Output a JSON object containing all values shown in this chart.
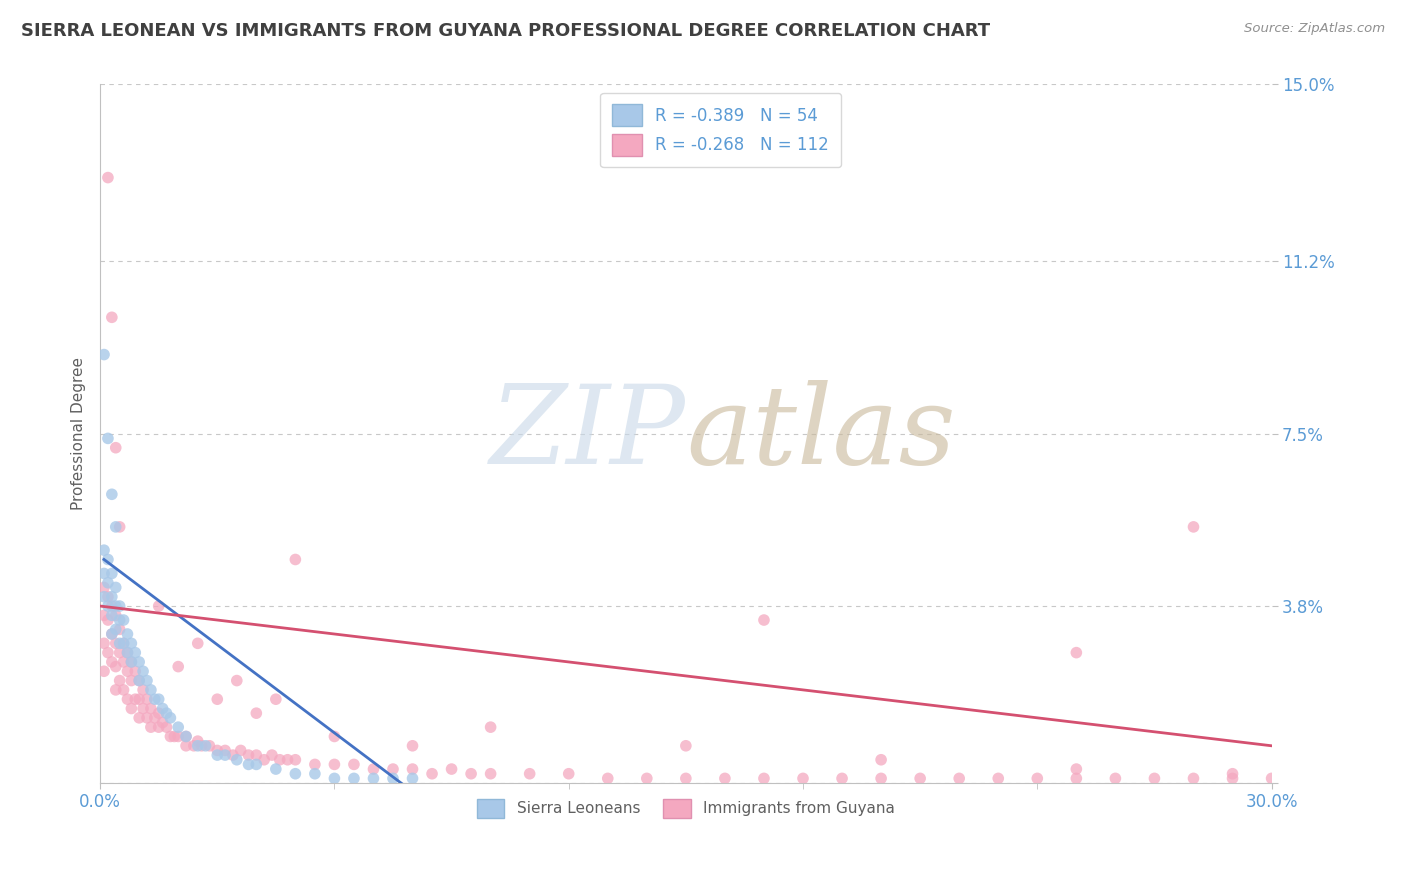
{
  "title": "SIERRA LEONEAN VS IMMIGRANTS FROM GUYANA PROFESSIONAL DEGREE CORRELATION CHART",
  "source": "Source: ZipAtlas.com",
  "ylabel": "Professional Degree",
  "xmin": 0.0,
  "xmax": 0.3,
  "ymin": 0.0,
  "ymax": 0.15,
  "yticks": [
    0.0,
    0.038,
    0.075,
    0.112,
    0.15
  ],
  "ytick_labels": [
    "",
    "3.8%",
    "7.5%",
    "11.2%",
    "15.0%"
  ],
  "xticks": [
    0.0,
    0.3
  ],
  "xtick_labels": [
    "0.0%",
    "30.0%"
  ],
  "blue_scatter_color": "#a8c8e8",
  "pink_scatter_color": "#f4a8c0",
  "blue_line_color": "#4472c4",
  "pink_line_color": "#d45070",
  "grid_color": "#c8c8c8",
  "axis_color": "#c0c0c0",
  "title_color": "#404040",
  "label_color": "#5b9bd5",
  "blue_line_x": [
    0.001,
    0.085
  ],
  "blue_line_y": [
    0.048,
    -0.005
  ],
  "pink_line_x": [
    0.0,
    0.3
  ],
  "pink_line_y": [
    0.038,
    0.008
  ],
  "blue_points_x": [
    0.001,
    0.001,
    0.001,
    0.002,
    0.002,
    0.002,
    0.003,
    0.003,
    0.003,
    0.003,
    0.004,
    0.004,
    0.004,
    0.005,
    0.005,
    0.005,
    0.006,
    0.006,
    0.007,
    0.007,
    0.008,
    0.008,
    0.009,
    0.01,
    0.01,
    0.011,
    0.012,
    0.013,
    0.014,
    0.015,
    0.016,
    0.017,
    0.018,
    0.02,
    0.022,
    0.025,
    0.027,
    0.03,
    0.032,
    0.035,
    0.038,
    0.04,
    0.045,
    0.05,
    0.055,
    0.06,
    0.065,
    0.07,
    0.075,
    0.08,
    0.001,
    0.002,
    0.003,
    0.004
  ],
  "blue_points_y": [
    0.05,
    0.045,
    0.04,
    0.048,
    0.043,
    0.038,
    0.045,
    0.04,
    0.036,
    0.032,
    0.042,
    0.038,
    0.033,
    0.038,
    0.035,
    0.03,
    0.035,
    0.03,
    0.032,
    0.028,
    0.03,
    0.026,
    0.028,
    0.026,
    0.022,
    0.024,
    0.022,
    0.02,
    0.018,
    0.018,
    0.016,
    0.015,
    0.014,
    0.012,
    0.01,
    0.008,
    0.008,
    0.006,
    0.006,
    0.005,
    0.004,
    0.004,
    0.003,
    0.002,
    0.002,
    0.001,
    0.001,
    0.001,
    0.001,
    0.001,
    0.092,
    0.074,
    0.062,
    0.055
  ],
  "pink_points_x": [
    0.001,
    0.001,
    0.001,
    0.001,
    0.002,
    0.002,
    0.002,
    0.003,
    0.003,
    0.003,
    0.004,
    0.004,
    0.004,
    0.004,
    0.005,
    0.005,
    0.005,
    0.006,
    0.006,
    0.006,
    0.007,
    0.007,
    0.007,
    0.008,
    0.008,
    0.008,
    0.009,
    0.009,
    0.01,
    0.01,
    0.01,
    0.011,
    0.011,
    0.012,
    0.012,
    0.013,
    0.013,
    0.014,
    0.015,
    0.015,
    0.016,
    0.017,
    0.018,
    0.019,
    0.02,
    0.022,
    0.022,
    0.024,
    0.025,
    0.026,
    0.028,
    0.03,
    0.032,
    0.034,
    0.036,
    0.038,
    0.04,
    0.042,
    0.044,
    0.046,
    0.048,
    0.05,
    0.055,
    0.06,
    0.065,
    0.07,
    0.075,
    0.08,
    0.085,
    0.09,
    0.095,
    0.1,
    0.11,
    0.12,
    0.13,
    0.14,
    0.15,
    0.16,
    0.17,
    0.18,
    0.19,
    0.2,
    0.21,
    0.22,
    0.23,
    0.24,
    0.25,
    0.26,
    0.27,
    0.28,
    0.29,
    0.3,
    0.002,
    0.003,
    0.004,
    0.05,
    0.17,
    0.25,
    0.28,
    0.005,
    0.015,
    0.025,
    0.035,
    0.045,
    0.1,
    0.15,
    0.2,
    0.25,
    0.29,
    0.02,
    0.03,
    0.04,
    0.06,
    0.08
  ],
  "pink_points_y": [
    0.042,
    0.036,
    0.03,
    0.024,
    0.04,
    0.035,
    0.028,
    0.038,
    0.032,
    0.026,
    0.036,
    0.03,
    0.025,
    0.02,
    0.033,
    0.028,
    0.022,
    0.03,
    0.026,
    0.02,
    0.028,
    0.024,
    0.018,
    0.026,
    0.022,
    0.016,
    0.024,
    0.018,
    0.022,
    0.018,
    0.014,
    0.02,
    0.016,
    0.018,
    0.014,
    0.016,
    0.012,
    0.014,
    0.015,
    0.012,
    0.013,
    0.012,
    0.01,
    0.01,
    0.01,
    0.01,
    0.008,
    0.008,
    0.009,
    0.008,
    0.008,
    0.007,
    0.007,
    0.006,
    0.007,
    0.006,
    0.006,
    0.005,
    0.006,
    0.005,
    0.005,
    0.005,
    0.004,
    0.004,
    0.004,
    0.003,
    0.003,
    0.003,
    0.002,
    0.003,
    0.002,
    0.002,
    0.002,
    0.002,
    0.001,
    0.001,
    0.001,
    0.001,
    0.001,
    0.001,
    0.001,
    0.001,
    0.001,
    0.001,
    0.001,
    0.001,
    0.001,
    0.001,
    0.001,
    0.001,
    0.001,
    0.001,
    0.13,
    0.1,
    0.072,
    0.048,
    0.035,
    0.028,
    0.055,
    0.055,
    0.038,
    0.03,
    0.022,
    0.018,
    0.012,
    0.008,
    0.005,
    0.003,
    0.002,
    0.025,
    0.018,
    0.015,
    0.01,
    0.008
  ]
}
